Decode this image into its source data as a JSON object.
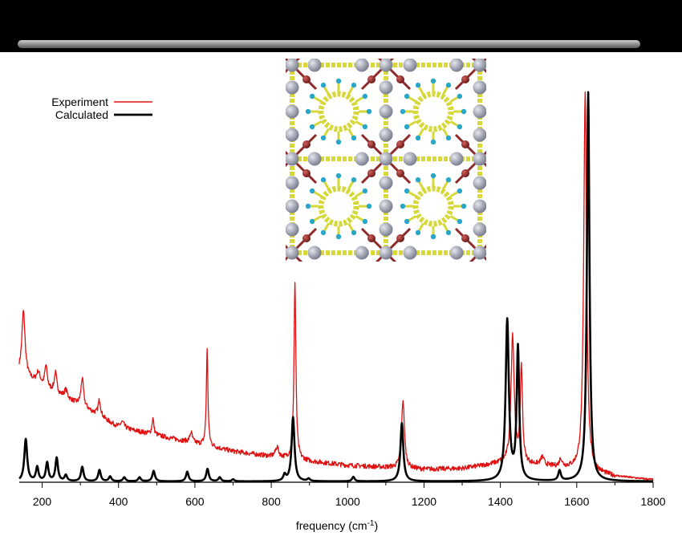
{
  "chart_data": {
    "type": "line",
    "title": "",
    "xlabel": "frequency (cm",
    "xlabel_sup": "-1",
    "xlabel_suffix": ")",
    "ylabel": "",
    "xlim": [
      140,
      1800
    ],
    "ylim": [
      0,
      1.0
    ],
    "x_ticks": [
      200,
      400,
      600,
      800,
      1000,
      1200,
      1400,
      1600,
      1800
    ],
    "grid": false,
    "legend_position": "top-left",
    "series": [
      {
        "name": "Experiment",
        "color": "#e01010",
        "baseline": [
          [
            140,
            0.27
          ],
          [
            200,
            0.235
          ],
          [
            300,
            0.19
          ],
          [
            400,
            0.135
          ],
          [
            500,
            0.115
          ],
          [
            600,
            0.095
          ],
          [
            700,
            0.075
          ],
          [
            800,
            0.062
          ],
          [
            900,
            0.05
          ],
          [
            1000,
            0.04
          ],
          [
            1100,
            0.035
          ],
          [
            1200,
            0.03
          ],
          [
            1300,
            0.032
          ],
          [
            1400,
            0.045
          ],
          [
            1500,
            0.04
          ],
          [
            1600,
            0.03
          ],
          [
            1700,
            0.012
          ],
          [
            1800,
            0.004
          ]
        ],
        "peaks": [
          [
            151,
            0.16,
            5
          ],
          [
            190,
            0.03,
            6
          ],
          [
            210,
            0.055,
            4
          ],
          [
            235,
            0.05,
            4
          ],
          [
            262,
            0.02,
            5
          ],
          [
            305,
            0.07,
            4
          ],
          [
            350,
            0.04,
            4
          ],
          [
            410,
            0.015,
            6
          ],
          [
            490,
            0.04,
            3
          ],
          [
            590,
            0.025,
            4
          ],
          [
            632,
            0.24,
            2.5
          ],
          [
            815,
            0.025,
            5
          ],
          [
            862,
            0.44,
            3
          ],
          [
            1145,
            0.17,
            4.5
          ],
          [
            1432,
            0.32,
            5
          ],
          [
            1455,
            0.24,
            3.5
          ],
          [
            1510,
            0.02,
            5
          ],
          [
            1558,
            0.02,
            4
          ],
          [
            1622,
            0.94,
            4.5
          ]
        ]
      },
      {
        "name": "Calculated",
        "color": "#000000",
        "baseline": [
          [
            140,
            0.0
          ],
          [
            1800,
            0.0
          ]
        ],
        "peaks": [
          [
            157,
            0.105,
            4.5
          ],
          [
            187,
            0.035,
            4
          ],
          [
            213,
            0.046,
            4
          ],
          [
            238,
            0.058,
            4
          ],
          [
            262,
            0.015,
            4
          ],
          [
            305,
            0.036,
            4
          ],
          [
            350,
            0.028,
            4
          ],
          [
            378,
            0.012,
            4
          ],
          [
            415,
            0.01,
            4
          ],
          [
            455,
            0.01,
            4
          ],
          [
            492,
            0.026,
            4
          ],
          [
            580,
            0.024,
            4
          ],
          [
            633,
            0.031,
            4
          ],
          [
            665,
            0.01,
            4
          ],
          [
            700,
            0.005,
            4
          ],
          [
            835,
            0.015,
            4
          ],
          [
            857,
            0.16,
            4.5
          ],
          [
            898,
            0.006,
            4
          ],
          [
            1015,
            0.011,
            4
          ],
          [
            1142,
            0.145,
            4.5
          ],
          [
            1418,
            0.4,
            5
          ],
          [
            1446,
            0.33,
            4
          ],
          [
            1555,
            0.025,
            4
          ],
          [
            1630,
            0.97,
            4
          ]
        ]
      }
    ]
  }
}
